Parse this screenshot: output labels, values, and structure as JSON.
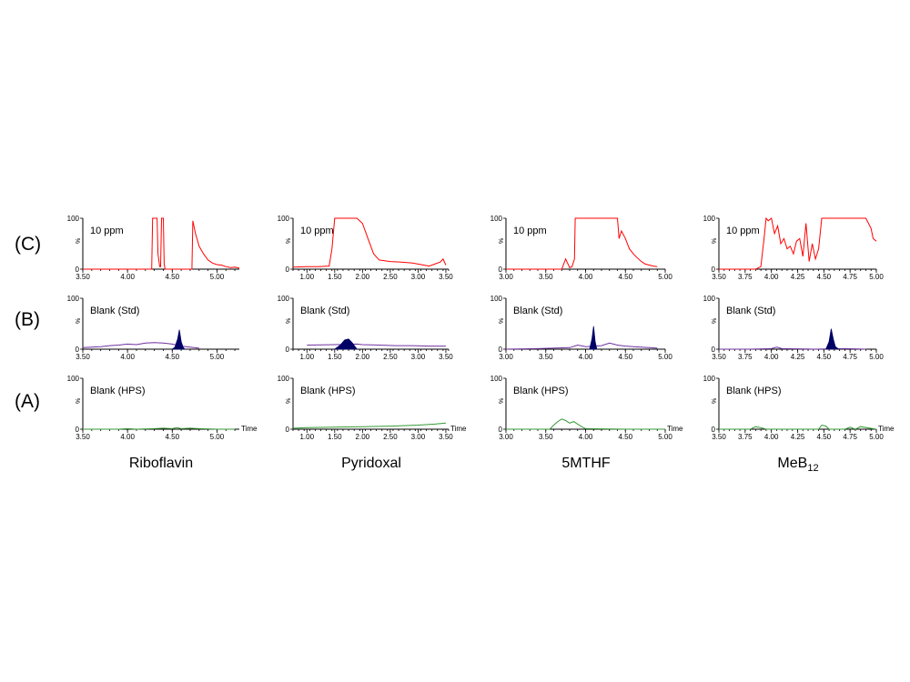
{
  "row_labels": [
    "(C)",
    "(B)",
    "(A)"
  ],
  "x_axis_word": "Time",
  "y_axis_ticks": [
    "100",
    "%",
    "0"
  ],
  "compounds": [
    {
      "name": "Riboflavin",
      "sub": ""
    },
    {
      "name": "Pyridoxal",
      "sub": ""
    },
    {
      "name": "5MTHF",
      "sub": ""
    },
    {
      "name": "MeB",
      "sub": "12"
    }
  ],
  "colors": {
    "C": "#ff0000",
    "B_line": "#7030a0",
    "B_fill": "#000066",
    "A": "#339933"
  },
  "chart_data": [
    {
      "type": "line",
      "compound": "Riboflavin",
      "row": "C",
      "label": "10 ppm",
      "xlim": [
        3.5,
        5.25
      ],
      "ylim": [
        0,
        100
      ],
      "x_ticks": [
        "3.50",
        "4.00",
        "4.50",
        "5.00"
      ],
      "series": [
        {
          "x": [
            3.5,
            4.27,
            4.28,
            4.3,
            4.33,
            4.34,
            4.36,
            4.37,
            4.38,
            4.4,
            4.41,
            4.42,
            4.72,
            4.73,
            4.76,
            4.8,
            4.85,
            4.9,
            4.95,
            5.0,
            5.05,
            5.1,
            5.15,
            5.2,
            5.25
          ],
          "y": [
            0,
            0,
            100,
            100,
            100,
            30,
            5,
            5,
            100,
            100,
            10,
            0,
            0,
            95,
            70,
            45,
            30,
            18,
            12,
            9,
            8,
            5,
            3,
            4,
            2
          ]
        }
      ]
    },
    {
      "type": "line",
      "compound": "Pyridoxal",
      "row": "C",
      "label": "10 ppm",
      "xlim": [
        0.75,
        3.55
      ],
      "ylim": [
        0,
        100
      ],
      "x_ticks": [
        "1.00",
        "1.50",
        "2.00",
        "2.50",
        "3.00",
        "3.50"
      ],
      "series": [
        {
          "x": [
            0.75,
            1.0,
            1.2,
            1.4,
            1.45,
            1.5,
            1.52,
            1.55,
            1.9,
            2.0,
            2.1,
            2.2,
            2.3,
            2.5,
            2.7,
            2.9,
            3.1,
            3.2,
            3.3,
            3.4,
            3.45,
            3.5
          ],
          "y": [
            4,
            5,
            5,
            6,
            40,
            100,
            100,
            100,
            100,
            90,
            60,
            30,
            18,
            15,
            14,
            12,
            8,
            6,
            10,
            14,
            20,
            8
          ]
        }
      ]
    },
    {
      "type": "line",
      "compound": "5MTHF",
      "row": "C",
      "label": "10 ppm",
      "xlim": [
        3.0,
        5.0
      ],
      "ylim": [
        0,
        100
      ],
      "x_ticks": [
        "3.00",
        "3.50",
        "4.00",
        "4.50",
        "5.00"
      ],
      "series": [
        {
          "x": [
            3.0,
            3.5,
            3.7,
            3.75,
            3.8,
            3.83,
            3.86,
            3.87,
            3.88,
            4.4,
            4.42,
            4.45,
            4.5,
            4.55,
            4.6,
            4.65,
            4.7,
            4.75,
            4.8,
            4.85,
            4.9
          ],
          "y": [
            0,
            0,
            0,
            20,
            3,
            5,
            20,
            100,
            100,
            100,
            60,
            75,
            60,
            40,
            30,
            22,
            15,
            10,
            8,
            6,
            5
          ]
        }
      ]
    },
    {
      "type": "line",
      "compound": "MeB12",
      "row": "C",
      "label": "10 ppm",
      "xlim": [
        3.5,
        5.0
      ],
      "ylim": [
        0,
        100
      ],
      "x_ticks": [
        "3.50",
        "3.75",
        "4.00",
        "4.25",
        "4.50",
        "4.75",
        "5.00"
      ],
      "series": [
        {
          "x": [
            3.5,
            3.85,
            3.9,
            3.93,
            3.95,
            3.97,
            4.0,
            4.03,
            4.06,
            4.09,
            4.12,
            4.15,
            4.18,
            4.21,
            4.24,
            4.27,
            4.3,
            4.33,
            4.36,
            4.39,
            4.42,
            4.45,
            4.48,
            4.5,
            4.6,
            4.7,
            4.8,
            4.9,
            4.95,
            4.97,
            5.0
          ],
          "y": [
            0,
            0,
            5,
            60,
            100,
            95,
            100,
            70,
            85,
            50,
            60,
            40,
            45,
            30,
            55,
            60,
            25,
            90,
            15,
            50,
            20,
            40,
            100,
            100,
            100,
            100,
            100,
            100,
            80,
            60,
            55
          ]
        }
      ]
    },
    {
      "type": "line",
      "compound": "Riboflavin",
      "row": "B",
      "label": "Blank (Std)",
      "xlim": [
        3.5,
        5.25
      ],
      "ylim": [
        0,
        100
      ],
      "x_ticks": [
        "3.50",
        "4.00",
        "4.50",
        "5.00"
      ],
      "series": [
        {
          "x": [
            3.5,
            3.6,
            3.7,
            3.8,
            3.9,
            4.0,
            4.1,
            4.2,
            4.3,
            4.4,
            4.5,
            4.6,
            4.7,
            4.8
          ],
          "y": [
            3,
            4,
            5,
            7,
            8,
            10,
            9,
            12,
            13,
            12,
            10,
            6,
            4,
            2
          ]
        },
        {
          "fill": true,
          "x": [
            4.5,
            4.53,
            4.56,
            4.58,
            4.6,
            4.62,
            4.64
          ],
          "y": [
            0,
            4,
            20,
            38,
            15,
            4,
            0
          ]
        }
      ]
    },
    {
      "type": "line",
      "compound": "Pyridoxal",
      "row": "B",
      "label": "Blank (Std)",
      "xlim": [
        0.75,
        3.55
      ],
      "ylim": [
        0,
        100
      ],
      "x_ticks": [
        "1.00",
        "1.50",
        "2.00",
        "2.50",
        "3.00",
        "3.50"
      ],
      "series": [
        {
          "x": [
            1.0,
            1.5,
            1.9,
            2.0,
            2.3,
            2.6,
            2.9,
            3.2,
            3.5
          ],
          "y": [
            8,
            9,
            10,
            9,
            8,
            7,
            7,
            6,
            6
          ]
        },
        {
          "fill": true,
          "x": [
            1.5,
            1.6,
            1.68,
            1.75,
            1.82,
            1.9
          ],
          "y": [
            0,
            8,
            18,
            20,
            12,
            0
          ]
        }
      ]
    },
    {
      "type": "line",
      "compound": "5MTHF",
      "row": "B",
      "label": "Blank (Std)",
      "xlim": [
        3.0,
        5.0
      ],
      "ylim": [
        0,
        100
      ],
      "x_ticks": [
        "3.00",
        "3.50",
        "4.00",
        "4.50",
        "5.00"
      ],
      "series": [
        {
          "x": [
            3.0,
            3.4,
            3.8,
            3.9,
            4.0,
            4.2,
            4.3,
            4.4,
            4.5,
            4.6,
            4.8,
            4.9
          ],
          "y": [
            0,
            1,
            3,
            8,
            5,
            7,
            12,
            8,
            6,
            5,
            3,
            2
          ]
        },
        {
          "fill": true,
          "x": [
            4.05,
            4.08,
            4.1,
            4.12,
            4.14
          ],
          "y": [
            0,
            20,
            45,
            15,
            0
          ]
        }
      ]
    },
    {
      "type": "line",
      "compound": "MeB12",
      "row": "B",
      "label": "Blank (Std)",
      "xlim": [
        3.5,
        5.0
      ],
      "ylim": [
        0,
        100
      ],
      "x_ticks": [
        "3.50",
        "3.75",
        "4.00",
        "4.25",
        "4.50",
        "4.75",
        "5.00"
      ],
      "series": [
        {
          "x": [
            3.5,
            3.8,
            4.0,
            4.05,
            4.1,
            4.4,
            4.7,
            4.9
          ],
          "y": [
            0,
            0,
            1,
            4,
            1,
            0,
            1,
            0
          ]
        },
        {
          "fill": true,
          "x": [
            4.52,
            4.55,
            4.57,
            4.59,
            4.61,
            4.64
          ],
          "y": [
            0,
            15,
            40,
            20,
            5,
            0
          ]
        }
      ]
    },
    {
      "type": "line",
      "compound": "Riboflavin",
      "row": "A",
      "label": "Blank (HPS)",
      "xlim": [
        3.5,
        5.25
      ],
      "ylim": [
        0,
        100
      ],
      "x_ticks": [
        "3.50",
        "4.00",
        "4.50",
        "5.00"
      ],
      "series": [
        {
          "x": [
            3.5,
            3.9,
            4.0,
            4.1,
            4.3,
            4.4,
            4.5,
            4.55,
            4.6,
            4.7,
            4.8,
            5.0,
            5.2
          ],
          "y": [
            0,
            0,
            1,
            0,
            1,
            2,
            1,
            3,
            1,
            2,
            1,
            0,
            0
          ]
        }
      ]
    },
    {
      "type": "line",
      "compound": "Pyridoxal",
      "row": "A",
      "label": "Blank (HPS)",
      "xlim": [
        0.75,
        3.55
      ],
      "ylim": [
        0,
        100
      ],
      "x_ticks": [
        "1.00",
        "1.50",
        "2.00",
        "2.50",
        "3.00",
        "3.50"
      ],
      "series": [
        {
          "x": [
            0.75,
            1.0,
            1.5,
            2.0,
            2.5,
            3.0,
            3.3,
            3.5
          ],
          "y": [
            2,
            3,
            4,
            5,
            6,
            8,
            10,
            12
          ]
        }
      ]
    },
    {
      "type": "line",
      "compound": "5MTHF",
      "row": "A",
      "label": "Blank (HPS)",
      "xlim": [
        3.0,
        5.0
      ],
      "ylim": [
        0,
        100
      ],
      "x_ticks": [
        "3.00",
        "3.50",
        "4.00",
        "4.50",
        "5.00"
      ],
      "series": [
        {
          "x": [
            3.0,
            3.55,
            3.6,
            3.65,
            3.7,
            3.75,
            3.8,
            3.85,
            3.9,
            3.95,
            4.0,
            4.5,
            5.0
          ],
          "y": [
            0,
            0,
            8,
            15,
            20,
            17,
            12,
            15,
            10,
            5,
            1,
            0,
            0
          ]
        }
      ]
    },
    {
      "type": "line",
      "compound": "MeB12",
      "row": "A",
      "label": "Blank (HPS)",
      "xlim": [
        3.5,
        5.0
      ],
      "ylim": [
        0,
        100
      ],
      "x_ticks": [
        "3.50",
        "3.75",
        "4.00",
        "4.25",
        "4.50",
        "4.75",
        "5.00"
      ],
      "series": [
        {
          "x": [
            3.5,
            3.8,
            3.85,
            3.9,
            3.95,
            4.3,
            4.45,
            4.48,
            4.52,
            4.55,
            4.7,
            4.75,
            4.8,
            4.85,
            5.0
          ],
          "y": [
            0,
            0,
            5,
            3,
            0,
            0,
            0,
            8,
            6,
            0,
            0,
            4,
            0,
            5,
            0
          ]
        }
      ]
    }
  ]
}
